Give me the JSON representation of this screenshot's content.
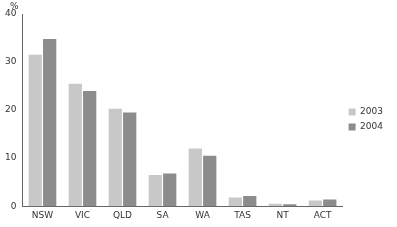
{
  "chart_data": {
    "type": "bar",
    "ylabel": "%",
    "categories": [
      "NSW",
      "VIC",
      "QLD",
      "SA",
      "WA",
      "TAS",
      "NT",
      "ACT"
    ],
    "series": [
      {
        "name": "2003",
        "color": "#c8c8c8",
        "values": [
          31.5,
          25.5,
          20.3,
          6.5,
          12.0,
          1.8,
          0.5,
          1.2
        ]
      },
      {
        "name": "2004",
        "color": "#8c8c8c",
        "values": [
          34.8,
          24.0,
          19.5,
          6.8,
          10.5,
          2.1,
          0.4,
          1.4
        ]
      }
    ],
    "ylim": [
      0,
      40
    ],
    "yticks": [
      0,
      10,
      20,
      30,
      40
    ],
    "grid": false,
    "legend": "right"
  }
}
